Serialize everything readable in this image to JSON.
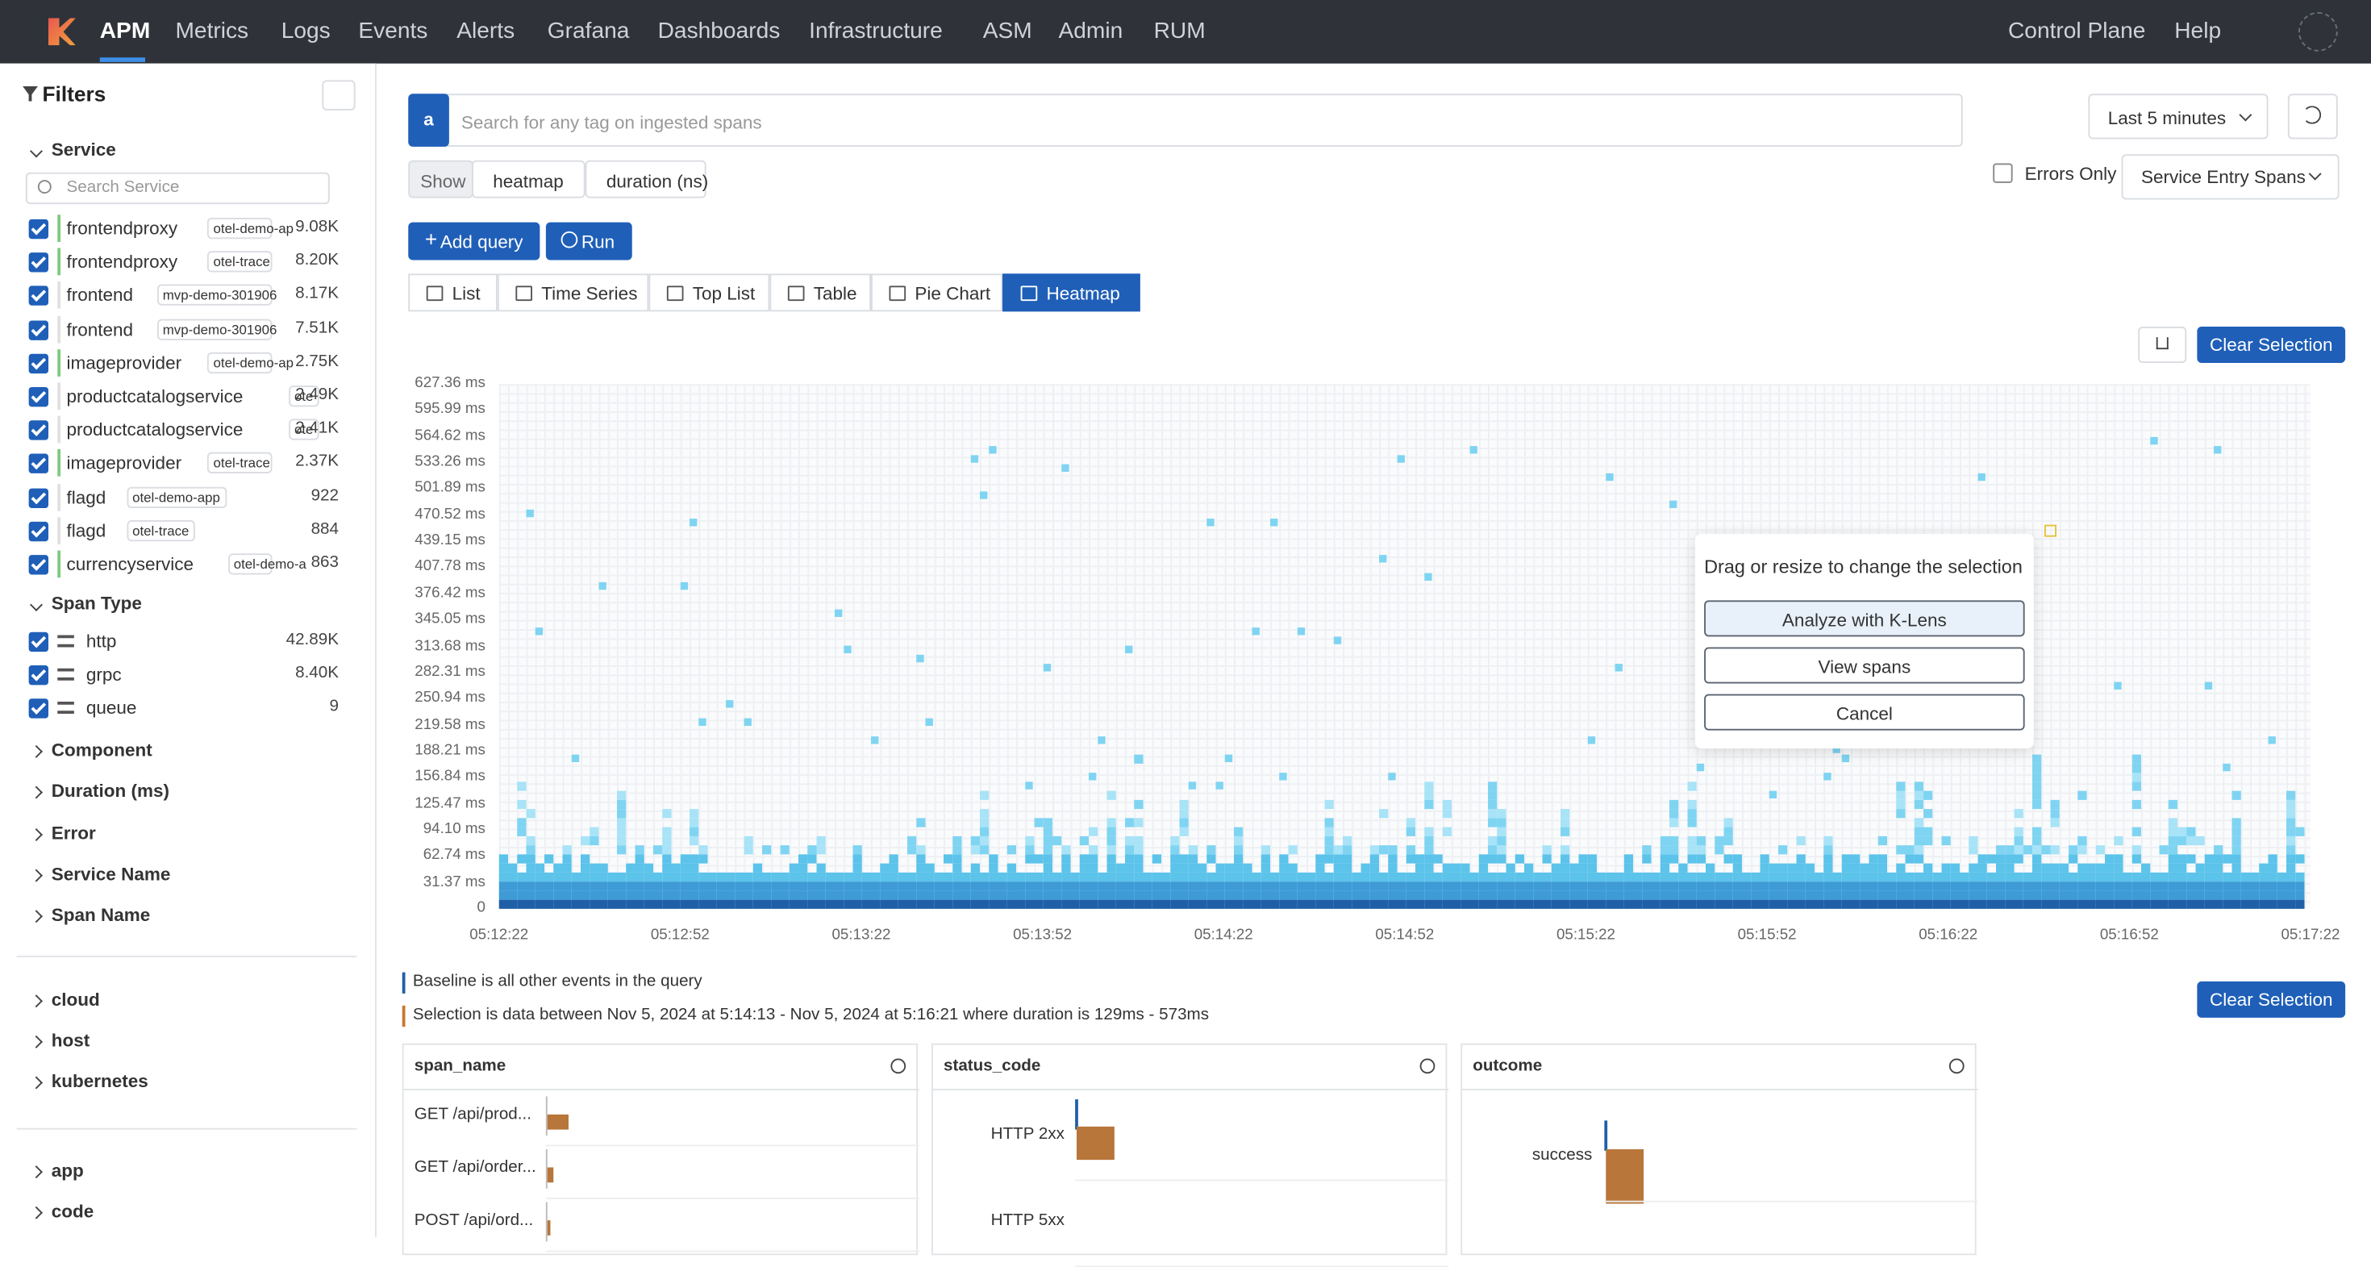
{
  "nav": {
    "items": [
      "APM",
      "Metrics",
      "Logs",
      "Events",
      "Alerts",
      "Grafana",
      "Dashboards",
      "Infrastructure",
      "ASM",
      "Admin",
      "RUM"
    ],
    "right": [
      "Control Plane",
      "Help"
    ]
  },
  "sidebar": {
    "title": "Filters",
    "service": {
      "title": "Service",
      "search_placeholder": "Search Service",
      "items": [
        {
          "name": "frontendproxy",
          "tag": "otel-demo-ap",
          "count": "9.08K"
        },
        {
          "name": "frontendproxy",
          "tag": "otel-trace",
          "count": "8.20K"
        },
        {
          "name": "frontend",
          "tag": "mvp-demo-301906",
          "count": "8.17K"
        },
        {
          "name": "frontend",
          "tag": "mvp-demo-301906",
          "count": "7.51K"
        },
        {
          "name": "imageprovider",
          "tag": "otel-demo-ap",
          "count": "2.75K"
        },
        {
          "name": "productcatalogservice",
          "tag": "ote",
          "count": "2.49K"
        },
        {
          "name": "productcatalogservice",
          "tag": "ote",
          "count": "2.41K"
        },
        {
          "name": "imageprovider",
          "tag": "otel-trace",
          "count": "2.37K"
        },
        {
          "name": "flagd",
          "tag": "otel-demo-app",
          "count": "922"
        },
        {
          "name": "flagd",
          "tag": "otel-trace",
          "count": "884"
        },
        {
          "name": "currencyservice",
          "tag": "otel-demo-a",
          "count": "863"
        }
      ]
    },
    "span_type": {
      "title": "Span Type",
      "items": [
        {
          "name": "http",
          "count": "42.89K"
        },
        {
          "name": "grpc",
          "count": "8.40K"
        },
        {
          "name": "queue",
          "count": "9"
        }
      ]
    },
    "collapsed": [
      "Component",
      "Duration (ms)",
      "Error",
      "Service Name",
      "Span Name"
    ],
    "groups_1": [
      "cloud",
      "host",
      "kubernetes"
    ],
    "groups_2": [
      "app",
      "code"
    ]
  },
  "query": {
    "badge": "a",
    "placeholder": "Search for any tag on ingested spans",
    "time_range": "Last 5 minutes",
    "show": [
      "Show",
      "heatmap",
      "duration (ns)"
    ],
    "errors_only": "Errors Only",
    "span_filter": "Service Entry Spans",
    "add_query": "Add query",
    "run": "Run"
  },
  "tabs": [
    "List",
    "Time Series",
    "Top List",
    "Table",
    "Pie Chart",
    "Heatmap"
  ],
  "heatmap": {
    "clear": "Clear Selection",
    "y_ticks": [
      "627.36 ms",
      "595.99 ms",
      "564.62 ms",
      "533.26 ms",
      "501.89 ms",
      "470.52 ms",
      "439.15 ms",
      "407.78 ms",
      "376.42 ms",
      "345.05 ms",
      "313.68 ms",
      "282.31 ms",
      "250.94 ms",
      "219.58 ms",
      "188.21 ms",
      "156.84 ms",
      "125.47 ms",
      "94.10 ms",
      "62.74 ms",
      "31.37 ms",
      "0"
    ],
    "x_ticks": [
      "05:12:22",
      "05:12:52",
      "05:13:22",
      "05:13:52",
      "05:14:22",
      "05:14:52",
      "05:15:22",
      "05:15:52",
      "05:16:22",
      "05:16:52",
      "05:17:22"
    ]
  },
  "selection_popup": {
    "text": "Drag or resize to change the selection",
    "buttons": [
      "Analyze with K-Lens",
      "View spans",
      "Cancel"
    ]
  },
  "analysis": {
    "baseline": "Baseline is all other events in the query",
    "selection": "Selection is data between Nov 5, 2024 at 5:14:13 - Nov 5, 2024 at 5:16:21 where duration is 129ms - 573ms",
    "clear": "Clear Selection",
    "cards": [
      {
        "title": "span_name",
        "rows": [
          "GET /api/prod...",
          "GET /api/order...",
          "POST /api/ord..."
        ]
      },
      {
        "title": "status_code",
        "rows": [
          "HTTP 2xx",
          "HTTP 5xx"
        ]
      },
      {
        "title": "outcome",
        "rows": [
          "success"
        ]
      }
    ]
  }
}
